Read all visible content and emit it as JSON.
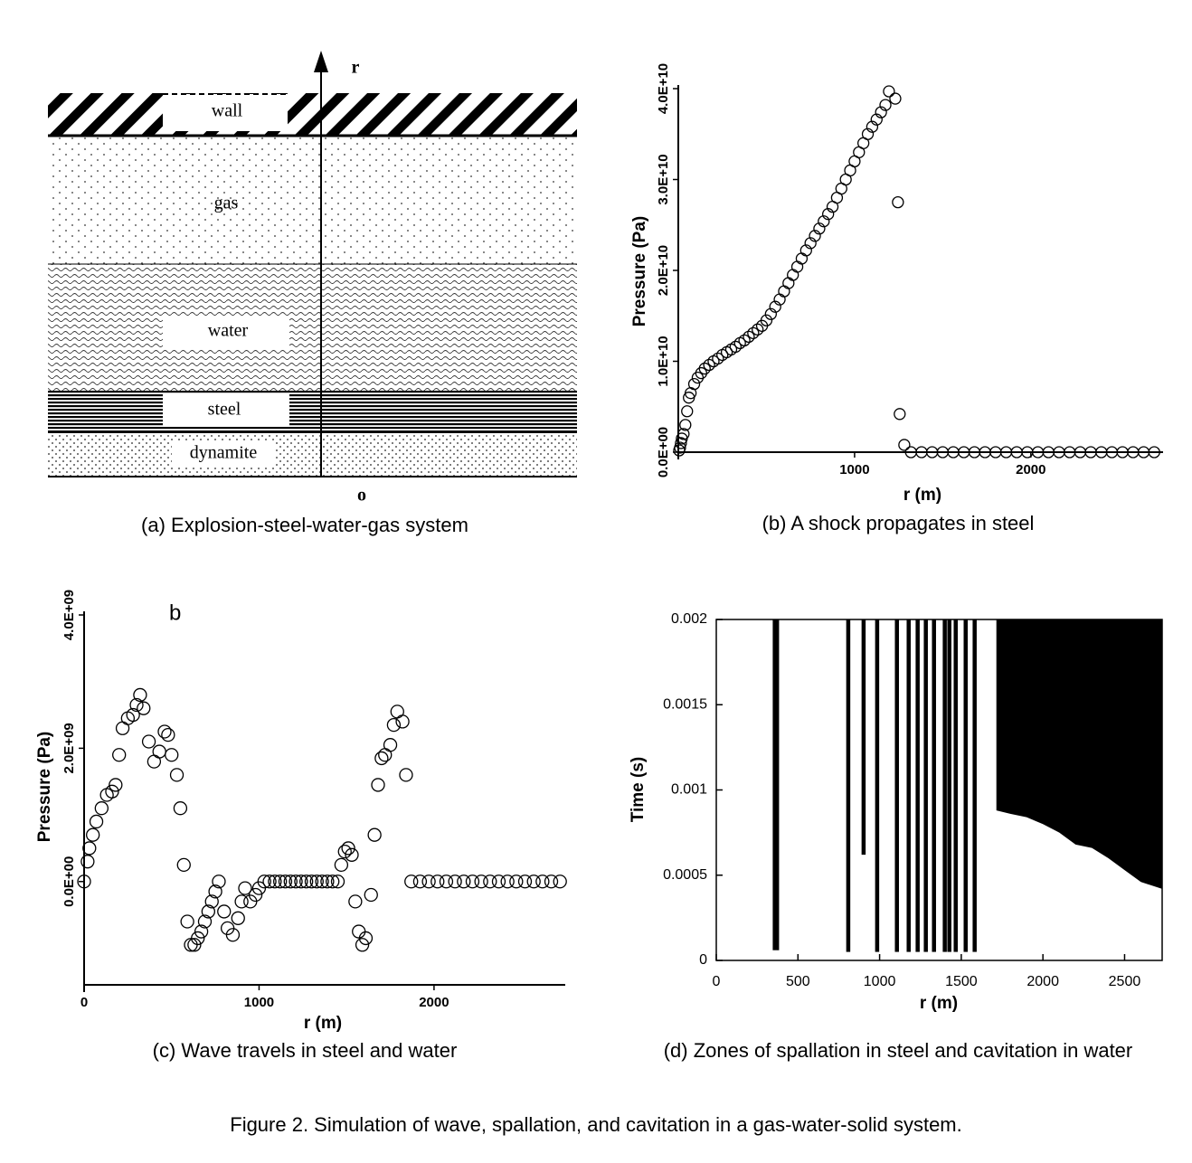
{
  "figure_caption": "Figure 2. Simulation of wave, spallation, and cavitation in a gas-water-solid system.",
  "diagram": {
    "caption": "(a) Explosion-steel-water-gas system",
    "axis_label": "r",
    "origin_label": "o",
    "layers": [
      "wall",
      "gas",
      "water",
      "steel",
      "dynamite"
    ]
  },
  "chart_data": [
    {
      "type": "scatter",
      "caption": "(b) A shock propagates in steel",
      "xlabel": "r (m)",
      "ylabel": "Pressure (Pa)",
      "xlim": [
        0,
        2750
      ],
      "xticks": [
        1000,
        2000
      ],
      "ylim": [
        0,
        40000000000
      ],
      "yticks": [
        {
          "value": 0,
          "label": "0.0E+00"
        },
        {
          "value": 10000000000,
          "label": "1.0E+10"
        },
        {
          "value": 20000000000,
          "label": "2.0E+10"
        },
        {
          "value": 30000000000,
          "label": "3.0E+10"
        },
        {
          "value": 40000000000,
          "label": "4.0E+10"
        }
      ],
      "x": [
        5,
        10,
        15,
        20,
        30,
        40,
        50,
        60,
        70,
        90,
        110,
        130,
        150,
        175,
        200,
        225,
        250,
        275,
        300,
        325,
        350,
        375,
        400,
        425,
        450,
        475,
        500,
        525,
        550,
        575,
        600,
        625,
        650,
        675,
        700,
        725,
        750,
        775,
        800,
        825,
        850,
        875,
        900,
        925,
        950,
        975,
        1000,
        1025,
        1050,
        1075,
        1100,
        1125,
        1150,
        1175,
        1195,
        1231,
        1246,
        1256,
        1282,
        1320,
        1380,
        1440,
        1500,
        1560,
        1620,
        1680,
        1740,
        1800,
        1860,
        1920,
        1980,
        2040,
        2100,
        2160,
        2220,
        2280,
        2340,
        2400,
        2460,
        2520,
        2580,
        2640,
        2700
      ],
      "values": [
        200000000.0,
        500000000.0,
        1000000000.0,
        1500000000.0,
        2000000000.0,
        3000000000.0,
        4500000000.0,
        6000000000.0,
        6500000000.0,
        7500000000.0,
        8200000000.0,
        8700000000.0,
        9200000000.0,
        9600000000.0,
        10000000000.0,
        10300000000.0,
        10700000000.0,
        11000000000.0,
        11300000000.0,
        11600000000.0,
        12000000000.0,
        12300000000.0,
        12700000000.0,
        13100000000.0,
        13500000000.0,
        13900000000.0,
        14500000000.0,
        15200000000.0,
        16000000000.0,
        16800000000.0,
        17700000000.0,
        18600000000.0,
        19500000000.0,
        20400000000.0,
        21300000000.0,
        22200000000.0,
        23000000000.0,
        23800000000.0,
        24600000000.0,
        25400000000.0,
        26200000000.0,
        27000000000.0,
        28000000000.0,
        29000000000.0,
        30000000000.0,
        31000000000.0,
        32000000000.0,
        33000000000.0,
        34000000000.0,
        35000000000.0,
        35800000000.0,
        36600000000.0,
        37400000000.0,
        38200000000.0,
        39700000000.0,
        38900000000.0,
        27500000000.0,
        4200000000.0,
        800000000.0,
        0,
        0,
        0,
        0,
        0,
        0,
        0,
        0,
        0,
        0,
        0,
        0,
        0,
        0,
        0,
        0,
        0,
        0,
        0,
        0,
        0,
        0,
        0,
        0
      ]
    },
    {
      "type": "scatter",
      "caption": "(c) Wave travels in steel and water",
      "xlabel": "r (m)",
      "ylabel": "Pressure (Pa)",
      "annotation": "b",
      "xlim": [
        0,
        2750
      ],
      "xticks": [
        0,
        1000,
        2000
      ],
      "ylim": [
        -1550000000,
        4000000000
      ],
      "yticks": [
        {
          "value": 0,
          "label": "0.0E+00"
        },
        {
          "value": 2000000000,
          "label": "2.0E+09"
        },
        {
          "value": 4000000000,
          "label": "4.0E+09"
        }
      ],
      "x": [
        0,
        20,
        30,
        50,
        70,
        100,
        130,
        160,
        180,
        200,
        220,
        250,
        280,
        300,
        320,
        340,
        370,
        400,
        430,
        460,
        480,
        500,
        530,
        550,
        570,
        590,
        610,
        630,
        650,
        670,
        690,
        710,
        730,
        750,
        770,
        800,
        820,
        850,
        880,
        900,
        920,
        950,
        980,
        1000,
        1030,
        1060,
        1090,
        1120,
        1150,
        1180,
        1210,
        1240,
        1270,
        1300,
        1330,
        1360,
        1390,
        1420,
        1450,
        1470,
        1490,
        1510,
        1530,
        1550,
        1570,
        1590,
        1610,
        1640,
        1660,
        1680,
        1700,
        1720,
        1750,
        1770,
        1790,
        1820,
        1840,
        1870,
        1920,
        1970,
        2020,
        2070,
        2120,
        2170,
        2220,
        2270,
        2320,
        2370,
        2420,
        2470,
        2520,
        2570,
        2620,
        2670,
        2720
      ],
      "values": [
        0,
        300000000.0,
        500000000.0,
        700000000.0,
        900000000.0,
        1100000000.0,
        1300000000.0,
        1350000000.0,
        1450000000.0,
        1900000000.0,
        2300000000.0,
        2450000000.0,
        2500000000.0,
        2650000000.0,
        2800000000.0,
        2600000000.0,
        2100000000.0,
        1800000000.0,
        1950000000.0,
        2250000000.0,
        2200000000.0,
        1900000000.0,
        1600000000.0,
        1100000000.0,
        250000000.0,
        -600000000.0,
        -950000000.0,
        -950000000.0,
        -850000000.0,
        -750000000.0,
        -600000000.0,
        -450000000.0,
        -300000000.0,
        -150000000.0,
        0,
        -450000000.0,
        -700000000.0,
        -800000000.0,
        -550000000.0,
        -300000000.0,
        -100000000.0,
        -300000000.0,
        -200000000.0,
        -100000000.0,
        0,
        0,
        0,
        0,
        0,
        0,
        0,
        0,
        0,
        0,
        0,
        0,
        0,
        0,
        0,
        250000000.0,
        450000000.0,
        500000000.0,
        400000000.0,
        -300000000.0,
        -750000000.0,
        -950000000.0,
        -850000000.0,
        -200000000.0,
        700000000.0,
        1450000000.0,
        1850000000.0,
        1900000000.0,
        2050000000.0,
        2350000000.0,
        2550000000.0,
        2400000000.0,
        1600000000.0,
        0,
        0,
        0,
        0,
        0,
        0,
        0,
        0,
        0,
        0,
        0,
        0,
        0,
        0,
        0,
        0,
        0,
        0
      ]
    },
    {
      "type": "zones",
      "caption": "(d) Zones of spallation in steel and cavitation in water",
      "xlabel": "r (m)",
      "ylabel": "Time (s)",
      "xlim": [
        0,
        2730
      ],
      "xticks": [
        0,
        500,
        1000,
        1500,
        2000,
        2500
      ],
      "ylim": [
        0,
        0.002
      ],
      "yticks": [
        0,
        0.0005,
        0.001,
        0.0015,
        0.002
      ],
      "x": [
        365,
        808,
        902,
        985,
        1106,
        1178,
        1233,
        1283,
        1333,
        1399,
        1427,
        1466,
        1527,
        1582
      ],
      "values": [
        6e-05,
        5e-05,
        0.00062,
        5e-05,
        5e-05,
        5e-05,
        5e-05,
        5e-05,
        5e-05,
        5e-05,
        5e-05,
        5e-05,
        5e-05,
        5e-05
      ],
      "cavitation": {
        "x": [
          1715,
          1800,
          1900,
          2000,
          2100,
          2200,
          2300,
          2400,
          2500,
          2600,
          2730
        ],
        "values": [
          0.00088,
          0.00086,
          0.00084,
          0.0008,
          0.00075,
          0.00068,
          0.00066,
          0.0006,
          0.00053,
          0.00046,
          0.00042
        ]
      }
    }
  ]
}
